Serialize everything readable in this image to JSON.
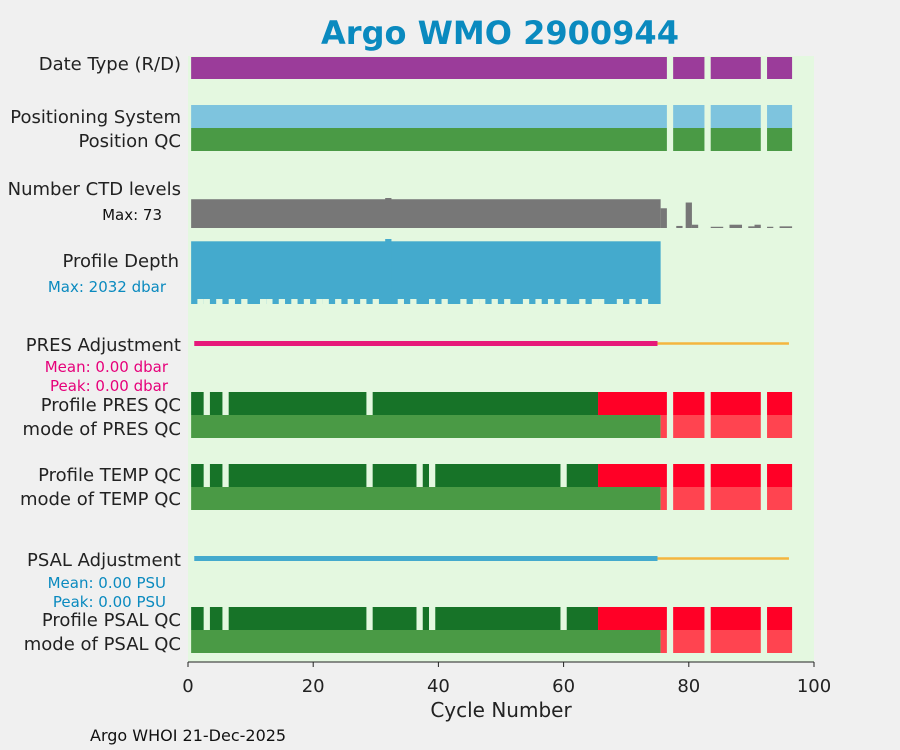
{
  "chart_data": {
    "type": "bar",
    "title": "Argo WMO 2900944",
    "xlabel": "Cycle Number",
    "xlim": [
      0,
      100
    ],
    "xticks": [
      0,
      20,
      40,
      60,
      80,
      100
    ],
    "footer": "Argo WHOI 21-Dec-2025",
    "colors": {
      "background": "#e4f8e0",
      "date_type": "#9b3c9a",
      "positioning": "#7ec4de",
      "qc_good": "#4a9a45",
      "qc_profile_good": "#177328",
      "qc_bad": "#ff0026",
      "qc_bad_light": "#ff4450",
      "gap": "#c8e6c0",
      "ctd": "#777777",
      "depth": "#44aacd",
      "pres": "#e61a7a",
      "psal": "#44aacd",
      "delayed": "#f4b63f"
    },
    "labels": {
      "date_type": "Date Type (R/D)",
      "positioning": "Positioning System",
      "position_qc": "Position QC",
      "ctd_levels": "Number CTD levels",
      "ctd_max": "Max: 73",
      "depth": "Profile Depth",
      "depth_max": "Max: 2032 dbar",
      "pres_adj": "PRES Adjustment",
      "pres_mean": "Mean: 0.00 dbar",
      "pres_peak": "Peak: 0.00 dbar",
      "pres_qc": "Profile PRES QC",
      "pres_mode": "mode of PRES QC",
      "temp_qc": "Profile TEMP QC",
      "temp_mode": "mode of TEMP QC",
      "psal_adj": "PSAL Adjustment",
      "psal_mean": "Mean: 0.00 PSU",
      "psal_peak": "Peak: 0.00 PSU",
      "psal_qc": "Profile PSAL QC",
      "psal_mode": "mode of PSAL QC"
    },
    "date_type_segments": [
      [
        0.5,
        76.5
      ],
      [
        77.5,
        82.5
      ],
      [
        83.5,
        91.5
      ],
      [
        92.5,
        96.5
      ]
    ],
    "positioning_segments": [
      [
        0.5,
        76.5
      ],
      [
        77.5,
        82.5
      ],
      [
        83.5,
        91.5
      ],
      [
        92.5,
        96.5
      ]
    ],
    "position_qc_segments": [
      [
        0.5,
        76.5
      ],
      [
        77.5,
        82.5
      ],
      [
        83.5,
        91.5
      ],
      [
        92.5,
        96.5
      ]
    ],
    "ctd_max": 73,
    "ctd_levels": [
      [
        0.5,
        75.5,
        70
      ],
      [
        75.5,
        76.5,
        48
      ],
      [
        31.5,
        32.5,
        73
      ],
      [
        78,
        79,
        5
      ],
      [
        79.5,
        80.5,
        62
      ],
      [
        80.5,
        81.5,
        8
      ],
      [
        83.5,
        85.5,
        3
      ],
      [
        86.5,
        88.5,
        8
      ],
      [
        89.5,
        90.5,
        4
      ],
      [
        90.5,
        91.5,
        8
      ],
      [
        92.5,
        93.5,
        3
      ],
      [
        94.5,
        96.5,
        4
      ]
    ],
    "depth_max": 2032,
    "depth_values": [
      [
        0.5,
        75.5,
        1960
      ],
      [
        31.5,
        32.5,
        2032
      ]
    ],
    "depth_gaps": [
      2,
      3,
      5,
      7,
      9,
      12,
      13,
      15,
      17,
      19,
      21,
      22,
      24,
      26,
      28,
      30,
      34,
      36,
      39,
      41,
      44,
      46,
      47,
      49,
      51,
      54,
      56,
      58,
      60,
      63,
      65,
      66,
      69,
      71,
      73
    ],
    "pres_adjustment": {
      "realtime_range": [
        1,
        75
      ],
      "delayed_range": [
        75,
        96
      ]
    },
    "pres_qc": {
      "good": [
        [
          0.5,
          2.5
        ],
        [
          3.5,
          5.5
        ],
        [
          6.5,
          28.5
        ],
        [
          29.5,
          65.5
        ]
      ],
      "bad": [
        [
          65.5,
          76.5
        ],
        [
          77.5,
          82.5
        ],
        [
          83.5,
          91.5
        ],
        [
          92.5,
          96.5
        ]
      ]
    },
    "pres_mode": {
      "good": [
        [
          0.5,
          75.5
        ]
      ],
      "bad": [
        [
          75.5,
          76.5
        ],
        [
          77.5,
          82.5
        ],
        [
          83.5,
          91.5
        ],
        [
          92.5,
          96.5
        ]
      ]
    },
    "temp_qc": {
      "good": [
        [
          0.5,
          2.5
        ],
        [
          3.5,
          5.5
        ],
        [
          6.5,
          28.5
        ],
        [
          29.5,
          36.5
        ],
        [
          37.5,
          38.5
        ],
        [
          39.5,
          59.5
        ],
        [
          60.5,
          65.5
        ]
      ],
      "bad": [
        [
          65.5,
          76.5
        ],
        [
          77.5,
          82.5
        ],
        [
          83.5,
          91.5
        ],
        [
          92.5,
          96.5
        ]
      ]
    },
    "temp_mode": {
      "good": [
        [
          0.5,
          75.5
        ]
      ],
      "bad": [
        [
          75.5,
          76.5
        ],
        [
          77.5,
          82.5
        ],
        [
          83.5,
          91.5
        ],
        [
          92.5,
          96.5
        ]
      ]
    },
    "psal_adjustment": {
      "realtime_range": [
        1,
        75
      ],
      "delayed_range": [
        75,
        96
      ]
    },
    "psal_qc": {
      "good": [
        [
          0.5,
          2.5
        ],
        [
          3.5,
          5.5
        ],
        [
          6.5,
          28.5
        ],
        [
          29.5,
          36.5
        ],
        [
          37.5,
          38.5
        ],
        [
          39.5,
          59.5
        ],
        [
          60.5,
          65.5
        ]
      ],
      "bad": [
        [
          65.5,
          76.5
        ],
        [
          77.5,
          82.5
        ],
        [
          83.5,
          91.5
        ],
        [
          92.5,
          96.5
        ]
      ]
    },
    "psal_mode": {
      "good": [
        [
          0.5,
          75.5
        ]
      ],
      "bad": [
        [
          75.5,
          76.5
        ],
        [
          77.5,
          82.5
        ],
        [
          83.5,
          91.5
        ],
        [
          92.5,
          96.5
        ]
      ]
    }
  }
}
